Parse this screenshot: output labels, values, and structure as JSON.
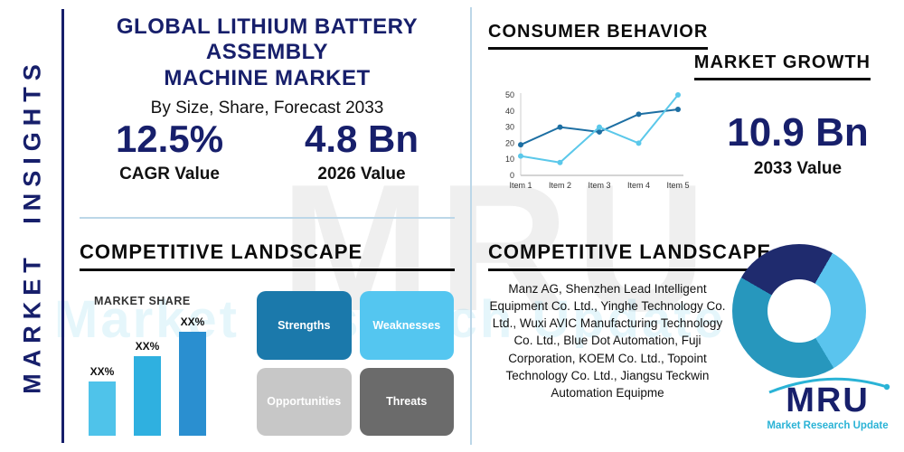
{
  "sidebar": {
    "label": "MARKET INSIGHTS"
  },
  "header": {
    "title_line1": "GLOBAL LITHIUM BATTERY ASSEMBLY",
    "title_line2": "MACHINE MARKET",
    "subtitle": "By Size, Share, Forecast 2033"
  },
  "stats": {
    "cagr": {
      "value": "12.5%",
      "label": "CAGR Value"
    },
    "y2026": {
      "value": "4.8 Bn",
      "label": "2026 Value"
    },
    "y2033": {
      "value": "10.9 Bn",
      "label": "2033 Value"
    }
  },
  "sections": {
    "consumer_behavior": "CONSUMER BEHAVIOR",
    "market_growth": "MARKET GROWTH",
    "competitive_left": "COMPETITIVE LANDSCAPE",
    "competitive_right": "COMPETITIVE LANDSCAPE",
    "market_share": "MARKET SHARE"
  },
  "swot": {
    "strengths": "Strengths",
    "weaknesses": "Weaknesses",
    "opportunities": "Opportunities",
    "threats": "Threats"
  },
  "companies": {
    "text": "Manz AG, Shenzhen Lead Intelligent Equipment Co. Ltd., Yinghe Technology Co. Ltd., Wuxi AVIC Manufacturing Technology Co. Ltd., Blue Dot Automation, Fuji Corporation, KOEM Co. Ltd., Topoint Technology Co. Ltd., Jiangsu Teckwin Automation Equipme"
  },
  "logo": {
    "name": "MRU",
    "tagline": "Market Research Update"
  },
  "watermark": {
    "big": "MRU",
    "sub": "Market Research Update"
  },
  "colors": {
    "navy": "#171f6b",
    "sky": "#4fc3ea",
    "teal": "#2797bd",
    "divider": "#bcd7e8",
    "heading": "#0b0b0b"
  },
  "chart_data": [
    {
      "type": "line",
      "title": "",
      "x": [
        "Item 1",
        "Item 2",
        "Item 3",
        "Item 4",
        "Item 5"
      ],
      "series": [
        {
          "name": "series-dark-blue",
          "color": "#1d6fa3",
          "values": [
            19,
            30,
            27,
            38,
            41
          ]
        },
        {
          "name": "series-light-blue",
          "color": "#5bc8ea",
          "values": [
            12,
            8,
            30,
            20,
            50
          ]
        }
      ],
      "ylim": [
        0,
        50
      ],
      "yticks": [
        0,
        10,
        20,
        30,
        40,
        50
      ],
      "grid": false,
      "legend": "none"
    },
    {
      "type": "bar",
      "title": "MARKET SHARE",
      "categories": [
        "bar-1",
        "bar-2",
        "bar-3"
      ],
      "labels": [
        "XX%",
        "XX%",
        "XX%"
      ],
      "values": [
        60,
        88,
        115
      ],
      "colors": [
        "#4fc3ea",
        "#2fb0e0",
        "#2a8fd0"
      ],
      "note": "data labels are XX% placeholders; values are relative bar heights estimated from pixels"
    },
    {
      "type": "pie",
      "variant": "donut",
      "start_angle": -60,
      "slices": [
        {
          "label": "segment-navy",
          "value": 25,
          "color": "#1f2b6e"
        },
        {
          "label": "segment-light-blue",
          "value": 33,
          "color": "#5ac4ee"
        },
        {
          "label": "segment-teal",
          "value": 42,
          "color": "#2797bd"
        }
      ]
    }
  ]
}
